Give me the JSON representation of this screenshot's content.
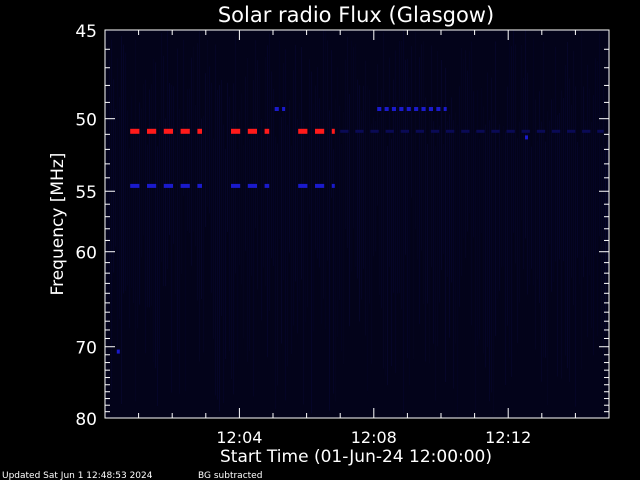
{
  "chart_data": {
    "type": "heatmap",
    "title": "Solar radio Flux (Glasgow)",
    "ylabel": "Frequency [MHz]",
    "xlabel": "Start Time (01-Jun-24 12:00:00)",
    "x_tick_labels": [
      "12:04",
      "12:08",
      "12:12"
    ],
    "x_ticks_min": [
      4,
      8,
      12
    ],
    "xlim_min": [
      0,
      15
    ],
    "y_tick_labels": [
      "45",
      "50",
      "55",
      "60",
      "70",
      "80"
    ],
    "y_ticks": [
      45,
      50,
      55,
      60,
      70,
      80
    ],
    "ylim": [
      45,
      80
    ],
    "y_scale": "reciprocal",
    "y_inverted": true,
    "colors": {
      "background": "#000000",
      "plot_bg": "#03031a",
      "strong": "#ff1a1a",
      "medium": "#1a1acc",
      "weak": "#0a0a55",
      "axes": "#ffffff"
    },
    "bursts": [
      {
        "freq": 50.8,
        "level": "strong",
        "segments_min": [
          [
            0.75,
            3.0
          ],
          [
            3.75,
            5.0
          ],
          [
            5.75,
            6.85
          ]
        ],
        "dash_period_min": 0.5
      },
      {
        "freq": 54.6,
        "level": "medium",
        "segments_min": [
          [
            0.75,
            3.0
          ],
          [
            3.75,
            5.0
          ],
          [
            5.75,
            6.85
          ]
        ],
        "dash_period_min": 0.5
      },
      {
        "freq": 49.4,
        "level": "medium",
        "segments_min": [
          [
            5.05,
            5.35
          ],
          [
            8.1,
            10.1
          ]
        ],
        "dash_period_min": 0.22
      },
      {
        "freq": 50.8,
        "level": "weak",
        "segments_min": [
          [
            7.0,
            15.0
          ]
        ],
        "dash_period_min": 0.45
      },
      {
        "freq": 70.6,
        "level": "medium",
        "segments_min": [
          [
            0.35,
            0.45
          ]
        ],
        "dash_period_min": 0.2
      },
      {
        "freq": 51.2,
        "level": "medium",
        "segments_min": [
          [
            12.5,
            12.6
          ]
        ],
        "dash_period_min": 0.2
      }
    ]
  },
  "footer": {
    "updated": "Updated Sat Jun  1 12:48:53 2024",
    "note": "BG subtracted"
  }
}
